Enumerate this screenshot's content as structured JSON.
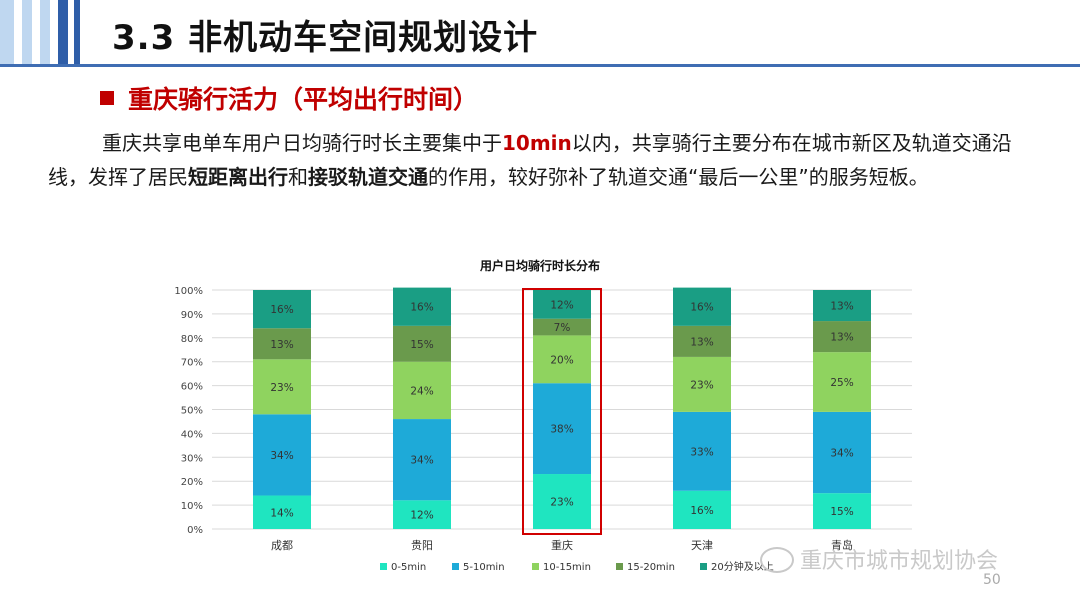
{
  "header": {
    "title": "3.3 非机动车空间规划设计"
  },
  "section": {
    "title": "重庆骑行活力（平均出行时间）"
  },
  "body": {
    "p1": "重庆共享电单车用户日均骑行时长主要集中于",
    "p2": "10min",
    "p3": "以内，共享骑行主要分布在城市新区及轨道交通沿线，发挥了居民",
    "p4": "短距离出行",
    "p5": "和",
    "p6": "接驳轨道交通",
    "p7": "的作用，较好弥补了轨道交通“最后一公里”的服务短板。"
  },
  "chart_data": {
    "type": "bar",
    "stacked": true,
    "title": "用户日均骑行时长分布",
    "categories": [
      "成都",
      "贵阳",
      "重庆",
      "天津",
      "青岛"
    ],
    "yticks": [
      "0%",
      "10%",
      "20%",
      "30%",
      "40%",
      "50%",
      "60%",
      "70%",
      "80%",
      "90%",
      "100%"
    ],
    "ylim": [
      0,
      100
    ],
    "highlight_category": "重庆",
    "legend_position": "bottom",
    "series": [
      {
        "name": "0-5min",
        "color": "#1fe5c0",
        "values": [
          14,
          12,
          23,
          16,
          15
        ]
      },
      {
        "name": "5-10min",
        "color": "#1eaad8",
        "values": [
          34,
          34,
          38,
          33,
          34
        ]
      },
      {
        "name": "10-15min",
        "color": "#8fd35f",
        "values": [
          23,
          24,
          20,
          23,
          25
        ]
      },
      {
        "name": "15-20min",
        "color": "#6a9a4c",
        "values": [
          13,
          15,
          7,
          13,
          13
        ]
      },
      {
        "name": "20分钟及以上",
        "color": "#1a9e84",
        "values": [
          16,
          16,
          12,
          16,
          13
        ]
      }
    ]
  },
  "footer": {
    "watermark": "重庆市城市规划协会",
    "page": "50"
  }
}
